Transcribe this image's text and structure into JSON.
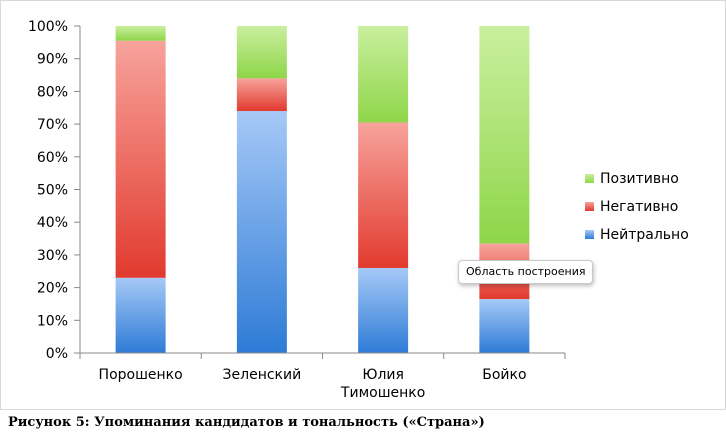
{
  "chart_data": {
    "type": "bar",
    "stacked": true,
    "percent": true,
    "categories": [
      "Порошенко",
      "Зеленский",
      "Юлия Тимошенко",
      "Бойко"
    ],
    "category_label_lines": [
      [
        "Порошенко"
      ],
      [
        "Зеленский"
      ],
      [
        "Юлия",
        "Тимошенко"
      ],
      [
        "Бойко"
      ]
    ],
    "series": [
      {
        "name": "Нейтрально",
        "values": [
          23,
          74,
          26,
          16.5
        ],
        "color": "#4a90e2"
      },
      {
        "name": "Негативно",
        "values": [
          72.5,
          10,
          44.5,
          17
        ],
        "color": "#e8463c"
      },
      {
        "name": "Позитивно",
        "values": [
          4.5,
          16,
          29.5,
          66.5
        ],
        "color": "#8ed648"
      }
    ],
    "ylim": [
      0,
      100
    ],
    "yticks": [
      "0%",
      "10%",
      "20%",
      "30%",
      "40%",
      "50%",
      "60%",
      "70%",
      "80%",
      "90%",
      "100%"
    ],
    "legend_position": "right",
    "legend_order": [
      "Позитивно",
      "Негативно",
      "Нейтрально"
    ],
    "grid": false
  },
  "tooltip": "Область построения",
  "caption": "Рисунок 5: Упоминания кандидатов и тональность («Страна»)"
}
